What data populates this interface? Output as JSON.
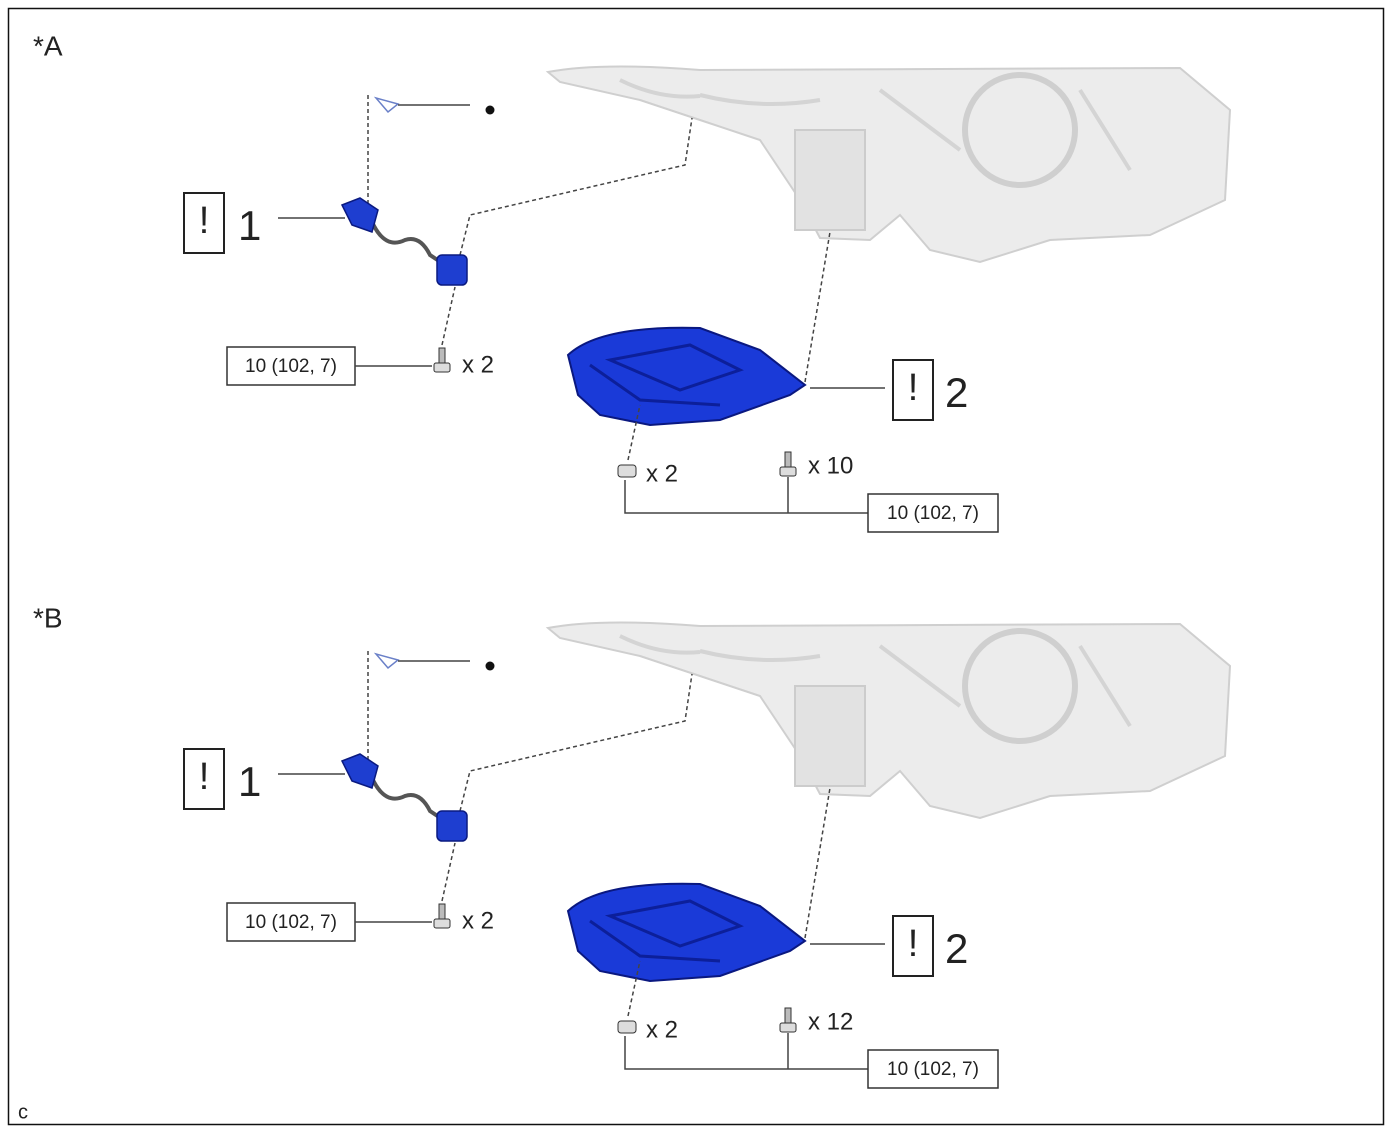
{
  "panels": [
    {
      "label": "*A",
      "callouts": [
        {
          "mark": "!",
          "number": "1"
        },
        {
          "mark": "!",
          "number": "2"
        }
      ],
      "sensor_bolts": {
        "torque": "10 (102, 7)",
        "quantity": "x 2"
      },
      "pan_bolts": {
        "torque": "10 (102, 7)",
        "quantity_a": "x 2",
        "quantity_b": "x 10"
      }
    },
    {
      "label": "*B",
      "callouts": [
        {
          "mark": "!",
          "number": "1"
        },
        {
          "mark": "!",
          "number": "2"
        }
      ],
      "sensor_bolts": {
        "torque": "10 (102, 7)",
        "quantity": "x 2"
      },
      "pan_bolts": {
        "torque": "10 (102, 7)",
        "quantity_a": "x 2",
        "quantity_b": "x 12"
      }
    }
  ],
  "footer": "c"
}
